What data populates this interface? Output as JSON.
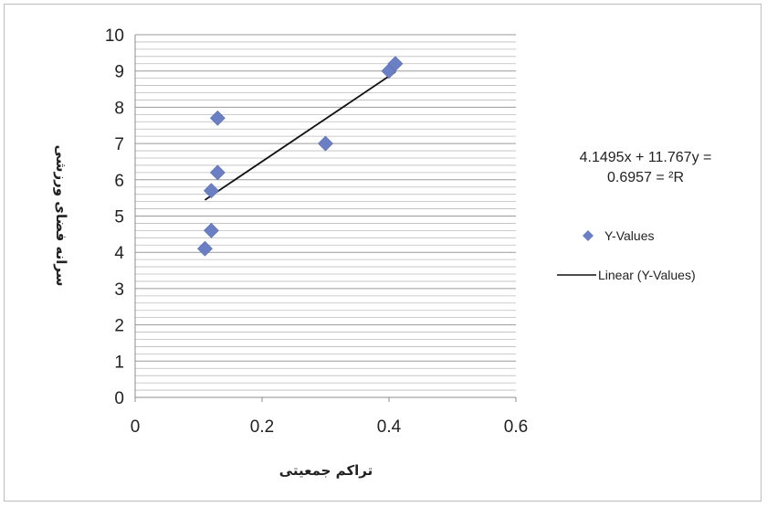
{
  "chart_data": {
    "type": "scatter",
    "title": "",
    "xlabel": "تراکم جمعیتی",
    "ylabel": "سرانه فضای ورزشی",
    "xlim": [
      0,
      0.6
    ],
    "ylim": [
      0,
      10
    ],
    "xticks": [
      "0",
      "0.2",
      "0.4",
      "0.6"
    ],
    "yticks": [
      "0",
      "1",
      "2",
      "3",
      "4",
      "5",
      "6",
      "7",
      "8",
      "9",
      "10"
    ],
    "grid": "horizontal minor lines",
    "series": [
      {
        "name": "Y-Values",
        "marker": "diamond",
        "color": "#6b7fc4",
        "points": [
          {
            "x": 0.11,
            "y": 4.1
          },
          {
            "x": 0.12,
            "y": 4.6
          },
          {
            "x": 0.12,
            "y": 5.7
          },
          {
            "x": 0.13,
            "y": 6.2
          },
          {
            "x": 0.13,
            "y": 7.7
          },
          {
            "x": 0.3,
            "y": 7.0
          },
          {
            "x": 0.4,
            "y": 9.0
          },
          {
            "x": 0.41,
            "y": 9.2
          }
        ]
      }
    ],
    "trendline": {
      "name": "Linear (Y-Values)",
      "color": "#111111",
      "slope": 11.767,
      "intercept": 4.1495,
      "x_range": [
        0.11,
        0.41
      ]
    },
    "equation_lines": [
      "4.1495x + 11.767y =",
      "0.6957 = ²R"
    ],
    "legend": {
      "position": "right",
      "items": [
        "Y-Values",
        "Linear (Y-Values)"
      ]
    }
  }
}
